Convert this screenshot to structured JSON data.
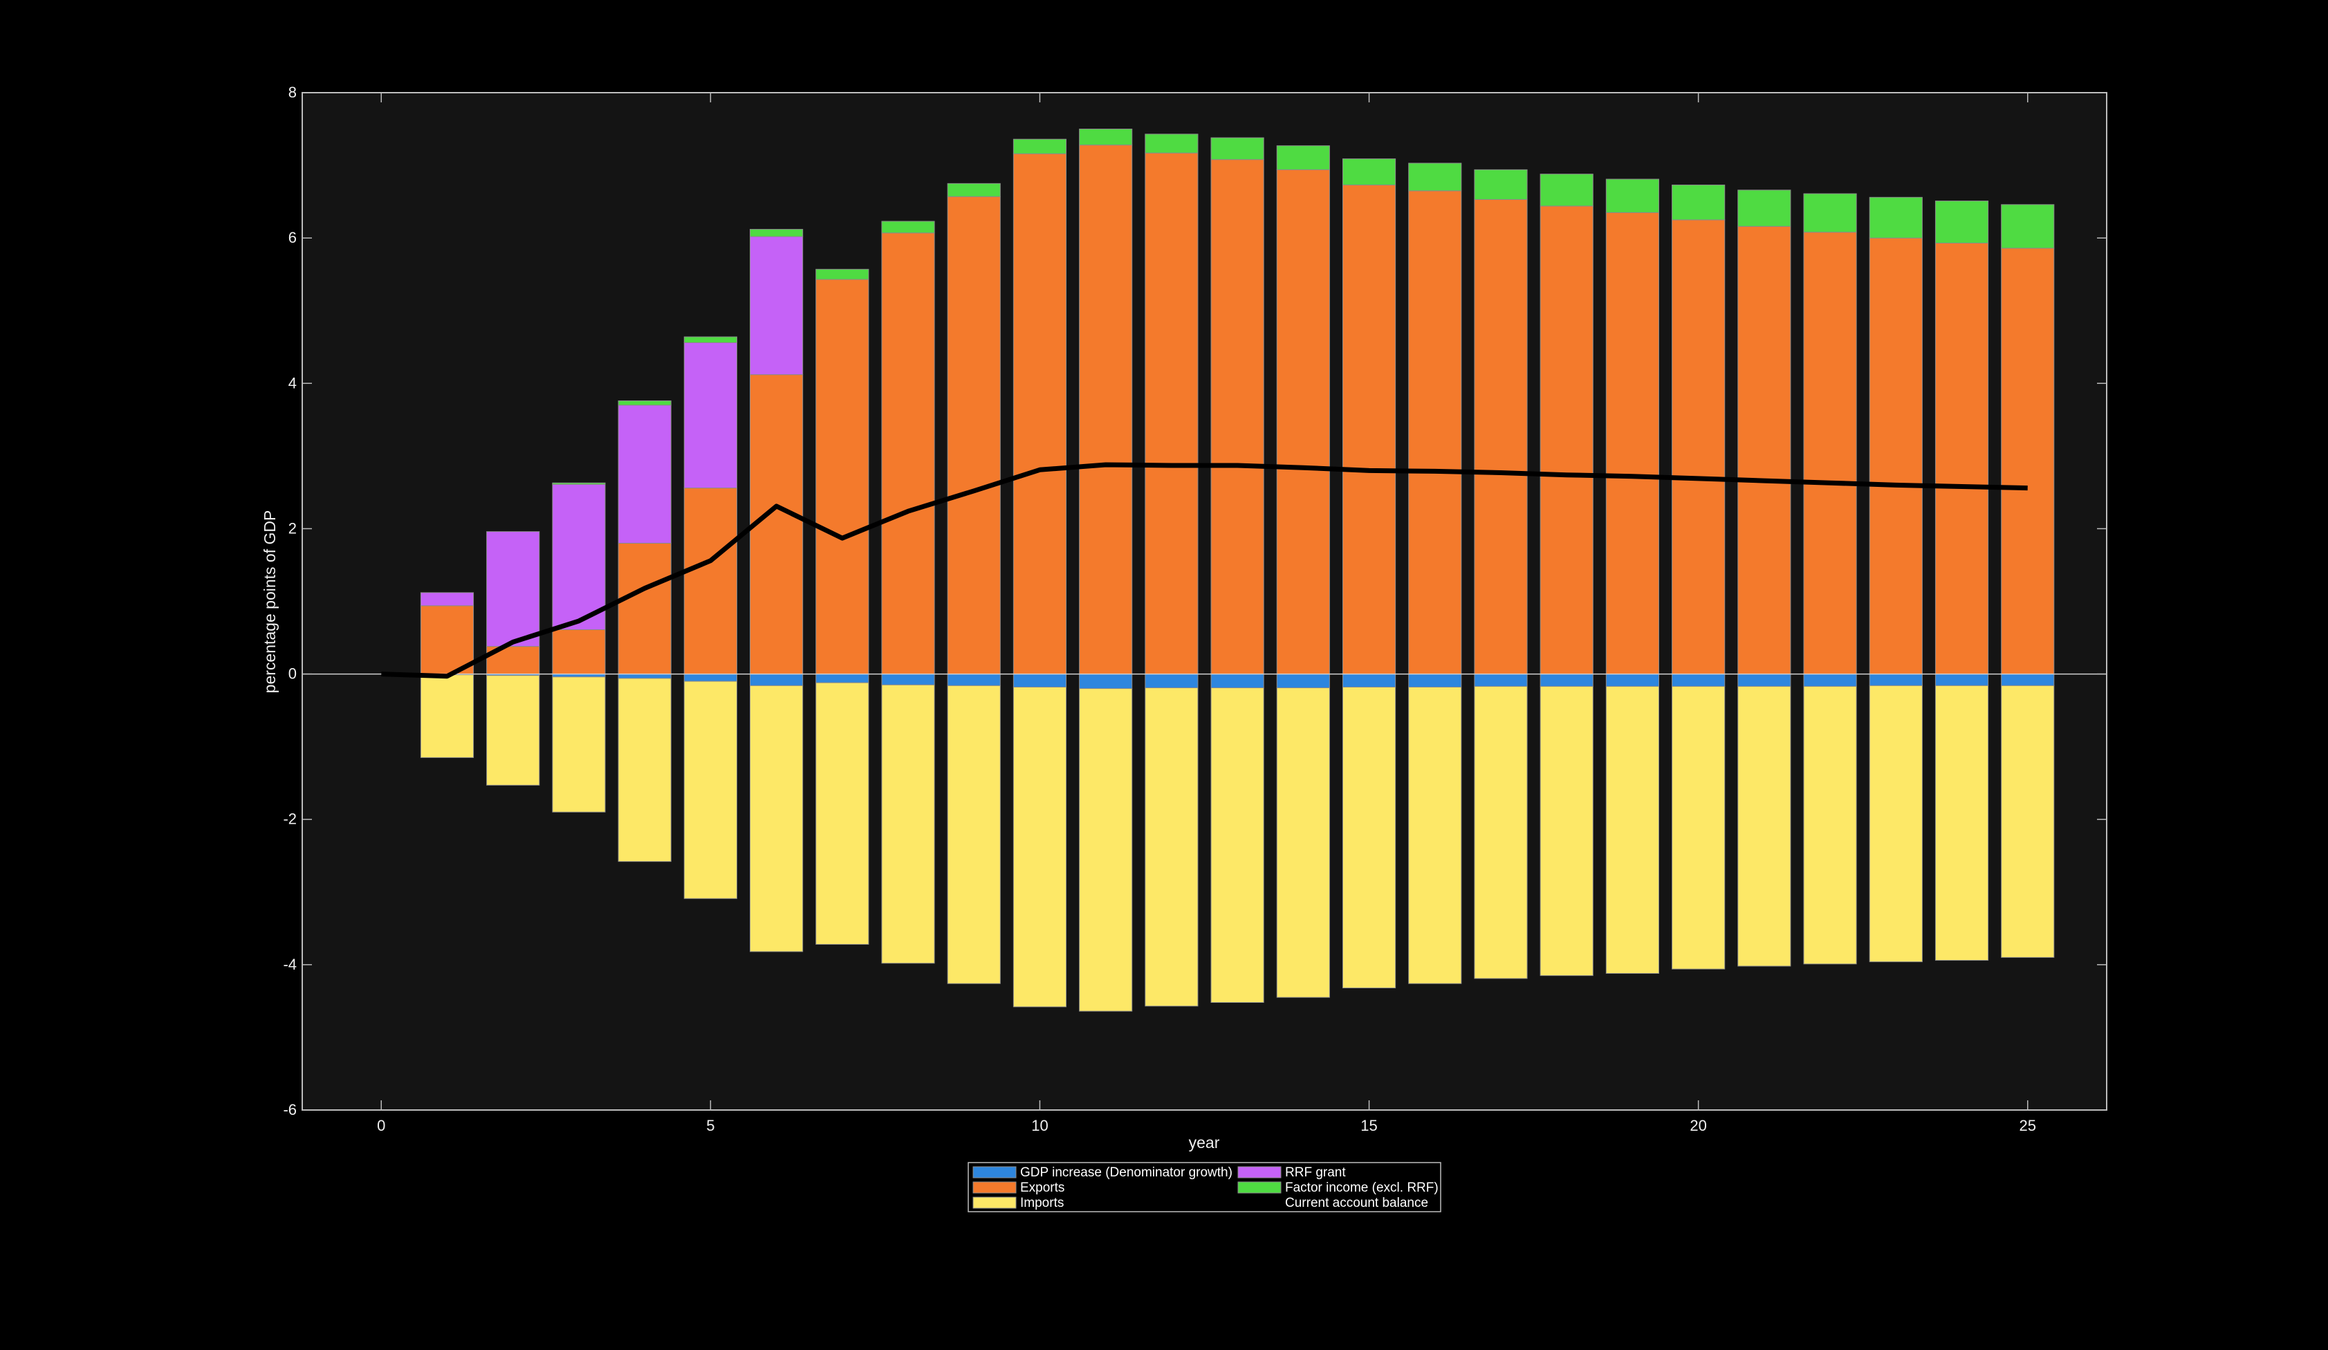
{
  "chart_data": {
    "type": "bar",
    "stacked": true,
    "xlabel": "year",
    "ylabel": "percentage points of GDP",
    "xlim": [
      -1.2,
      26.2
    ],
    "ylim": [
      -6,
      8
    ],
    "xticks": [
      0,
      5,
      10,
      15,
      20,
      25
    ],
    "yticks": [
      -6,
      -4,
      -2,
      0,
      2,
      4,
      6,
      8
    ],
    "grid": false,
    "zero_line": true,
    "legend_position": "bottom-center",
    "x": [
      1,
      2,
      3,
      4,
      5,
      6,
      7,
      8,
      9,
      10,
      11,
      12,
      13,
      14,
      15,
      16,
      17,
      18,
      19,
      20,
      21,
      22,
      23,
      24,
      25
    ],
    "series": [
      {
        "name": "GDP increase (Denominator growth)",
        "kind": "bar",
        "color": "#2e86de",
        "values": [
          -0.01,
          -0.02,
          -0.04,
          -0.06,
          -0.1,
          -0.16,
          -0.12,
          -0.15,
          -0.16,
          -0.18,
          -0.2,
          -0.19,
          -0.19,
          -0.19,
          -0.18,
          -0.18,
          -0.17,
          -0.17,
          -0.17,
          -0.17,
          -0.17,
          -0.17,
          -0.16,
          -0.16,
          -0.16
        ]
      },
      {
        "name": "Exports",
        "kind": "bar",
        "color": "#f47a2c",
        "values": [
          0.94,
          0.38,
          0.61,
          1.8,
          2.56,
          4.12,
          5.43,
          6.07,
          6.57,
          7.16,
          7.28,
          7.17,
          7.08,
          6.94,
          6.73,
          6.65,
          6.53,
          6.44,
          6.35,
          6.25,
          6.16,
          6.08,
          6.0,
          5.93,
          5.86
        ]
      },
      {
        "name": "Imports",
        "kind": "bar",
        "color": "#fde867",
        "values": [
          -1.14,
          -1.51,
          -1.86,
          -2.52,
          -2.99,
          -3.66,
          -3.6,
          -3.83,
          -4.1,
          -4.4,
          -4.44,
          -4.38,
          -4.33,
          -4.26,
          -4.14,
          -4.08,
          -4.02,
          -3.98,
          -3.95,
          -3.89,
          -3.85,
          -3.82,
          -3.8,
          -3.78,
          -3.74
        ]
      },
      {
        "name": "RRF grant",
        "kind": "bar",
        "color": "#c562f7",
        "values": [
          0.18,
          1.58,
          2.0,
          1.9,
          2.0,
          1.9,
          0.0,
          0.0,
          0.0,
          0.0,
          0.0,
          0.0,
          0.0,
          0.0,
          0.0,
          0.0,
          0.0,
          0.0,
          0.0,
          0.0,
          0.0,
          0.0,
          0.0,
          0.0,
          0.0
        ]
      },
      {
        "name": "Factor income (excl. RRF)",
        "kind": "bar",
        "color": "#4fdb42",
        "values": [
          0.0,
          0.0,
          0.02,
          0.06,
          0.08,
          0.1,
          0.14,
          0.16,
          0.18,
          0.2,
          0.22,
          0.26,
          0.3,
          0.33,
          0.36,
          0.38,
          0.41,
          0.44,
          0.46,
          0.48,
          0.5,
          0.53,
          0.56,
          0.58,
          0.6
        ]
      },
      {
        "name": "Current account balance",
        "kind": "line",
        "color": "#000000",
        "x": [
          0,
          1,
          2,
          3,
          4,
          5,
          6,
          7,
          8,
          9,
          10,
          11,
          12,
          13,
          14,
          15,
          16,
          17,
          18,
          19,
          20,
          21,
          22,
          23,
          24,
          25
        ],
        "values": [
          0.0,
          -0.03,
          0.44,
          0.73,
          1.18,
          1.56,
          2.31,
          1.87,
          2.24,
          2.52,
          2.81,
          2.88,
          2.87,
          2.87,
          2.84,
          2.8,
          2.79,
          2.77,
          2.74,
          2.72,
          2.69,
          2.66,
          2.63,
          2.6,
          2.58,
          2.56
        ]
      }
    ],
    "colors": {
      "page_background": "#000000",
      "plot_background": "#141414",
      "axis": "#bdbdbd",
      "text": "#f0f0f0"
    }
  }
}
